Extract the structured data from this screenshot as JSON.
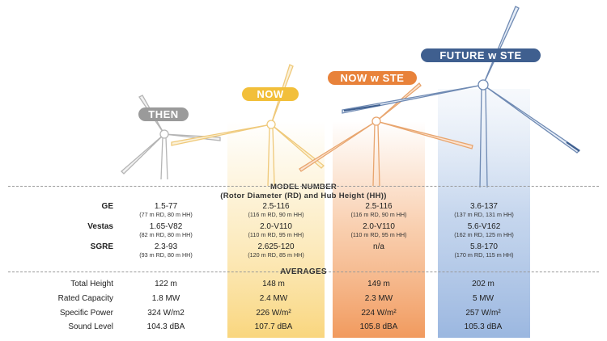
{
  "eras": [
    {
      "key": "then",
      "label": "THEN",
      "color": "#9a9a9a",
      "band": "none"
    },
    {
      "key": "now",
      "label": "NOW",
      "color": "#f2bf3a",
      "band": "#fbe3a6"
    },
    {
      "key": "now_ste",
      "label": "NOW w STE",
      "color": "#e8823a",
      "band": "#f6b98b"
    },
    {
      "key": "future",
      "label": "FUTURE w STE",
      "color": "#3f5f8f",
      "band": "#a9c2e4"
    }
  ],
  "model_section": {
    "title_line1": "MODEL NUMBER",
    "title_line2": "(Rotor Diameter (RD) and Hub Height (HH))",
    "rows": [
      {
        "manufacturer": "GE",
        "cells": [
          {
            "model": "1.5-77",
            "dims": "(77 m RD, 80 m HH)"
          },
          {
            "model": "2.5-116",
            "dims": "(116 m RD, 90 m HH)"
          },
          {
            "model": "2.5-116",
            "dims": "(116 m RD, 90 m HH)"
          },
          {
            "model": "3.6-137",
            "dims": "(137 m RD, 131 m HH)"
          }
        ]
      },
      {
        "manufacturer": "Vestas",
        "cells": [
          {
            "model": "1.65-V82",
            "dims": "(82 m RD, 80 m HH)"
          },
          {
            "model": "2.0-V110",
            "dims": "(110 m RD, 95 m HH)"
          },
          {
            "model": "2.0-V110",
            "dims": "(110 m RD, 95 m HH)"
          },
          {
            "model": "5.6-V162",
            "dims": "(162 m RD, 125 m HH)"
          }
        ]
      },
      {
        "manufacturer": "SGRE",
        "cells": [
          {
            "model": "2.3-93",
            "dims": "(93 m RD, 80 m HH)"
          },
          {
            "model": "2.625-120",
            "dims": "(120 m RD, 85 m HH)"
          },
          {
            "model": "n/a",
            "dims": ""
          },
          {
            "model": "5.8-170",
            "dims": "(170 m RD, 115 m HH)"
          }
        ]
      }
    ]
  },
  "averages_section": {
    "title": "AVERAGES",
    "rows": [
      {
        "metric": "Total Height",
        "values": [
          "122 m",
          "148 m",
          "149 m",
          "202 m"
        ]
      },
      {
        "metric": "Rated Capacity",
        "values": [
          "1.8 MW",
          "2.4 MW",
          "2.3 MW",
          "5 MW"
        ]
      },
      {
        "metric": "Specific Power",
        "values": [
          "324 W/m2",
          "226 W/m²",
          "224 W/m²",
          "257 W/m²"
        ]
      },
      {
        "metric": "Sound Level",
        "values": [
          "104.3 dBA",
          "107.7 dBA",
          "105.8 dBA",
          "105.3 dBA"
        ]
      }
    ]
  }
}
